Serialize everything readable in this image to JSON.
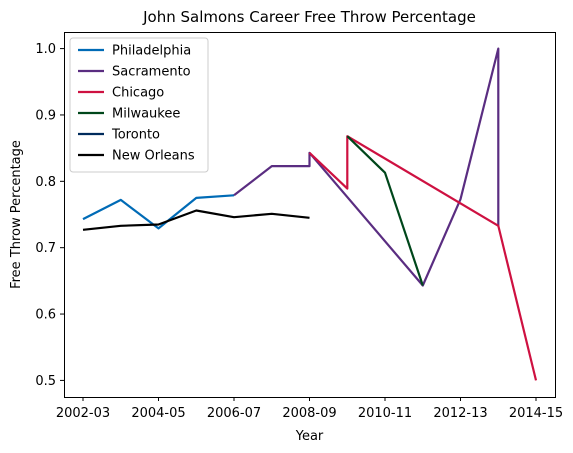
{
  "chart_data": {
    "type": "line",
    "title": "John Salmons Career Free Throw Percentage",
    "xlabel": "Year",
    "ylabel": "Free Throw Percentage",
    "categories": [
      "2002-03",
      "2003-04",
      "2004-05",
      "2005-06",
      "2006-07",
      "2007-08",
      "2008-09",
      "2009-10",
      "2010-11",
      "2011-12",
      "2012-13",
      "2013-14",
      "2014-15"
    ],
    "x_tick_labels": [
      "2002-03",
      "2004-05",
      "2006-07",
      "2008-09",
      "2010-11",
      "2012-13",
      "2014-15"
    ],
    "y_ticks": [
      "0.5",
      "0.6",
      "0.7",
      "0.8",
      "0.9",
      "1.0"
    ],
    "ylim": [
      0.475,
      1.025
    ],
    "legend_position": "upper-left",
    "series": [
      {
        "name": "Philadelphia",
        "color": "#006bb6",
        "points": [
          [
            "2002-03",
            0.743
          ],
          [
            "2003-04",
            0.772
          ],
          [
            "2004-05",
            0.729
          ],
          [
            "2005-06",
            0.775
          ],
          [
            "2006-07",
            0.779
          ]
        ]
      },
      {
        "name": "Sacramento",
        "color": "#5a2d81",
        "points": [
          [
            "2006-07",
            0.779
          ],
          [
            "2007-08",
            0.823
          ],
          [
            "2008-09",
            0.823
          ],
          [
            "2008-09",
            0.843
          ],
          [
            "2011-12",
            0.643
          ],
          [
            "2012-13",
            0.773
          ],
          [
            "2013-14",
            1.0
          ],
          [
            "2013-14",
            0.733
          ]
        ]
      },
      {
        "name": "Chicago",
        "color": "#ce1141",
        "points": [
          [
            "2008-09",
            0.843
          ],
          [
            "2009-10",
            0.789
          ],
          [
            "2009-10",
            0.868
          ],
          [
            "2013-14",
            0.733
          ],
          [
            "2014-15",
            0.5
          ]
        ]
      },
      {
        "name": "Milwaukee",
        "color": "#00471b",
        "points": [
          [
            "2009-10",
            0.868
          ],
          [
            "2010-11",
            0.813
          ],
          [
            "2011-12",
            0.643
          ]
        ]
      },
      {
        "name": "Toronto",
        "color": "#002b5c",
        "points": []
      },
      {
        "name": "New Orleans",
        "color": "#000000",
        "points": [
          [
            "2002-03",
            0.727
          ],
          [
            "2003-04",
            0.733
          ],
          [
            "2004-05",
            0.735
          ],
          [
            "2005-06",
            0.756
          ],
          [
            "2006-07",
            0.746
          ],
          [
            "2007-08",
            0.751
          ],
          [
            "2008-09",
            0.745
          ]
        ]
      }
    ]
  }
}
